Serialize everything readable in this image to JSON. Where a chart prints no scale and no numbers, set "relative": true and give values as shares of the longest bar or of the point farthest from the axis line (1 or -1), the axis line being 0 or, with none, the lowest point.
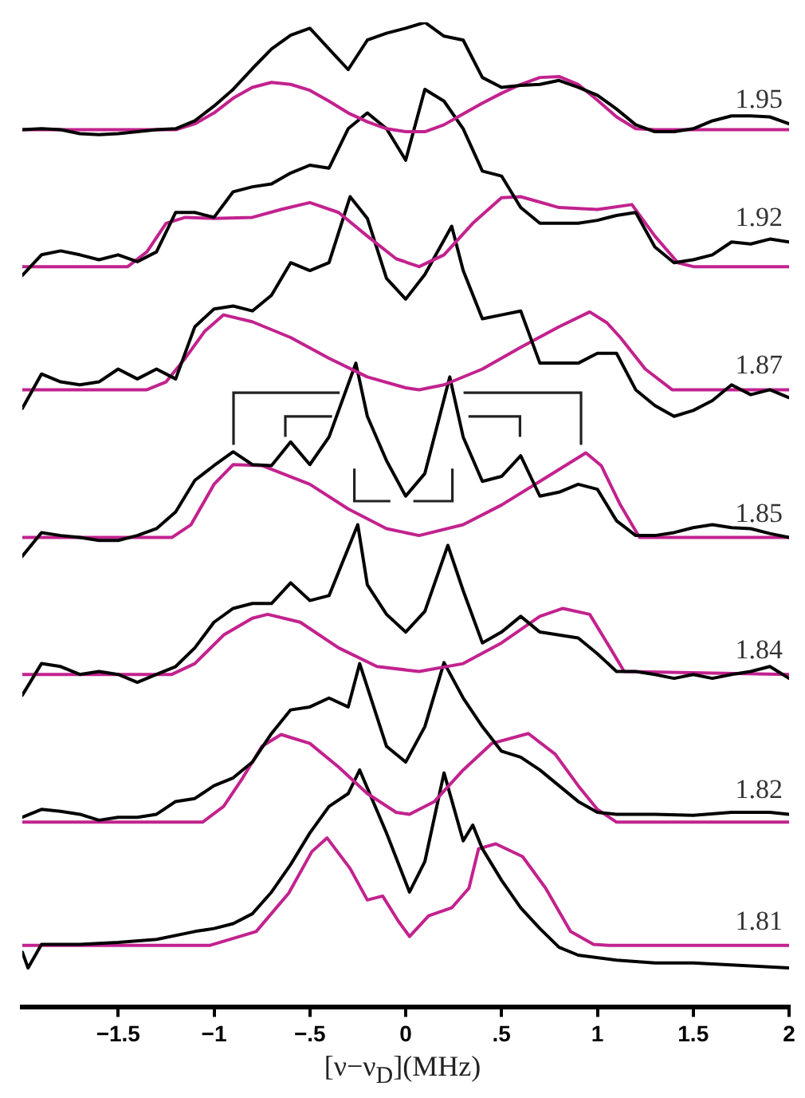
{
  "chart_data": {
    "type": "line",
    "relative": true,
    "xlabel": "[ν−ν$_{D}$](MHz)",
    "xlim": [
      -2,
      2
    ],
    "xticks": [
      {
        "value": -1.5,
        "label": "−1.5"
      },
      {
        "value": -1,
        "label": "−1"
      },
      {
        "value": -0.5,
        "label": "−.5"
      },
      {
        "value": 0,
        "label": "0"
      },
      {
        "value": 0.5,
        "label": ".5"
      },
      {
        "value": 1,
        "label": "1"
      },
      {
        "value": 1.5,
        "label": "1.5"
      },
      {
        "value": 2,
        "label": "2"
      }
    ],
    "series": [
      {
        "name": "1.95",
        "color": "#000000",
        "x": [
          -2,
          -1.9,
          -1.8,
          -1.7,
          -1.6,
          -1.5,
          -1.4,
          -1.3,
          -1.2,
          -1.1,
          -1,
          -0.9,
          -0.8,
          -0.7,
          -0.6,
          -0.5,
          -0.4,
          -0.3,
          -0.2,
          -0.1,
          0,
          0.1,
          0.2,
          0.3,
          0.4,
          0.5,
          0.6,
          0.7,
          0.8,
          0.9,
          1,
          1.1,
          1.2,
          1.3,
          1.4,
          1.5,
          1.6,
          1.7,
          1.8,
          1.9,
          2
        ],
        "values": [
          0.891,
          0.892,
          0.891,
          0.887,
          0.886,
          0.887,
          0.889,
          0.891,
          0.892,
          0.9,
          0.915,
          0.932,
          0.953,
          0.973,
          0.987,
          0.994,
          0.973,
          0.952,
          0.982,
          0.989,
          0.994,
          1,
          0.986,
          0.982,
          0.944,
          0.934,
          0.936,
          0.937,
          0.941,
          0.934,
          0.926,
          0.912,
          0.896,
          0.889,
          0.889,
          0.892,
          0.9,
          0.905,
          0.905,
          0.904,
          0.897
        ]
      },
      {
        "color": "#c2228e",
        "x": [
          -2,
          -1.2,
          -1.1,
          -1,
          -0.9,
          -0.8,
          -0.7,
          -0.6,
          -0.5,
          -0.4,
          -0.3,
          -0.2,
          -0.1,
          0,
          0.1,
          0.2,
          0.3,
          0.4,
          0.5,
          0.6,
          0.7,
          0.8,
          0.9,
          1,
          1.1,
          1.2,
          1.3,
          2
        ],
        "values": [
          0.891,
          0.891,
          0.897,
          0.908,
          0.923,
          0.934,
          0.939,
          0.937,
          0.931,
          0.92,
          0.908,
          0.899,
          0.892,
          0.889,
          0.889,
          0.896,
          0.907,
          0.918,
          0.928,
          0.937,
          0.944,
          0.945,
          0.937,
          0.921,
          0.904,
          0.892,
          0.891,
          0.891
        ]
      },
      {
        "name": "1.92",
        "color": "#000000",
        "x": [
          -2,
          -1.9,
          -1.8,
          -1.7,
          -1.6,
          -1.5,
          -1.4,
          -1.3,
          -1.2,
          -1.1,
          -1,
          -0.9,
          -0.8,
          -0.7,
          -0.6,
          -0.5,
          -0.4,
          -0.3,
          -0.2,
          -0.1,
          0,
          0.1,
          0.2,
          0.3,
          0.4,
          0.5,
          0.6,
          0.7,
          0.8,
          0.9,
          1,
          1.1,
          1.2,
          1.3,
          1.4,
          1.5,
          1.6,
          1.7,
          1.8,
          1.9,
          2
        ],
        "values": [
          0.743,
          0.764,
          0.768,
          0.764,
          0.759,
          0.764,
          0.757,
          0.767,
          0.807,
          0.807,
          0.802,
          0.828,
          0.833,
          0.836,
          0.847,
          0.855,
          0.852,
          0.892,
          0.908,
          0.892,
          0.86,
          0.932,
          0.92,
          0.892,
          0.849,
          0.844,
          0.812,
          0.796,
          0.796,
          0.796,
          0.799,
          0.804,
          0.807,
          0.772,
          0.756,
          0.759,
          0.764,
          0.777,
          0.775,
          0.78,
          0.777
        ]
      },
      {
        "color": "#c2228e",
        "x": [
          -2,
          -1.45,
          -1.35,
          -1.25,
          -1.15,
          -1,
          -0.8,
          -0.65,
          -0.5,
          -0.35,
          -0.2,
          -0.05,
          0.07,
          0.2,
          0.35,
          0.5,
          0.6,
          0.8,
          1,
          1.18,
          1.3,
          1.42,
          1.5,
          2
        ],
        "values": [
          0.752,
          0.752,
          0.767,
          0.796,
          0.802,
          0.801,
          0.802,
          0.81,
          0.817,
          0.807,
          0.783,
          0.76,
          0.752,
          0.764,
          0.796,
          0.822,
          0.823,
          0.812,
          0.81,
          0.815,
          0.783,
          0.756,
          0.752,
          0.752
        ]
      },
      {
        "name": "1.87",
        "color": "#000000",
        "x": [
          -2,
          -1.9,
          -1.8,
          -1.7,
          -1.6,
          -1.5,
          -1.4,
          -1.3,
          -1.2,
          -1.1,
          -1,
          -0.9,
          -0.8,
          -0.7,
          -0.6,
          -0.5,
          -0.4,
          -0.29,
          -0.2,
          -0.1,
          0,
          0.1,
          0.24,
          0.3,
          0.4,
          0.5,
          0.6,
          0.7,
          0.8,
          0.9,
          1,
          1.1,
          1.2,
          1.3,
          1.4,
          1.5,
          1.6,
          1.7,
          1.8,
          1.9,
          2
        ],
        "values": [
          0.608,
          0.643,
          0.635,
          0.632,
          0.635,
          0.648,
          0.638,
          0.648,
          0.638,
          0.691,
          0.709,
          0.712,
          0.707,
          0.723,
          0.756,
          0.748,
          0.756,
          0.823,
          0.801,
          0.74,
          0.719,
          0.744,
          0.793,
          0.748,
          0.699,
          0.703,
          0.707,
          0.654,
          0.654,
          0.654,
          0.664,
          0.664,
          0.627,
          0.611,
          0.6,
          0.606,
          0.616,
          0.632,
          0.622,
          0.627,
          0.619
        ]
      },
      {
        "color": "#c2228e",
        "x": [
          -2,
          -1.35,
          -1.25,
          -1.15,
          -1.05,
          -0.95,
          -0.8,
          -0.6,
          -0.4,
          -0.2,
          0,
          0.07,
          0.2,
          0.4,
          0.6,
          0.8,
          0.96,
          1.05,
          1.12,
          1.25,
          1.39,
          2
        ],
        "values": [
          0.627,
          0.627,
          0.635,
          0.659,
          0.686,
          0.703,
          0.696,
          0.68,
          0.659,
          0.64,
          0.629,
          0.627,
          0.632,
          0.648,
          0.67,
          0.691,
          0.706,
          0.695,
          0.68,
          0.648,
          0.627,
          0.627
        ]
      },
      {
        "name": "1.85",
        "color": "#000000",
        "x": [
          -2,
          -1.9,
          -1.8,
          -1.7,
          -1.6,
          -1.5,
          -1.4,
          -1.3,
          -1.2,
          -1.1,
          -1,
          -0.9,
          -0.8,
          -0.7,
          -0.6,
          -0.5,
          -0.4,
          -0.26,
          -0.2,
          -0.1,
          0,
          0.1,
          0.23,
          0.3,
          0.4,
          0.5,
          0.6,
          0.7,
          0.8,
          0.9,
          1,
          1.1,
          1.2,
          1.3,
          1.4,
          1.5,
          1.6,
          1.7,
          1.8,
          1.9,
          2
        ],
        "values": [
          0.458,
          0.482,
          0.479,
          0.477,
          0.474,
          0.474,
          0.479,
          0.486,
          0.503,
          0.535,
          0.55,
          0.564,
          0.551,
          0.55,
          0.574,
          0.551,
          0.579,
          0.654,
          0.6,
          0.555,
          0.519,
          0.542,
          0.64,
          0.579,
          0.534,
          0.539,
          0.56,
          0.519,
          0.523,
          0.531,
          0.526,
          0.494,
          0.479,
          0.479,
          0.482,
          0.487,
          0.49,
          0.487,
          0.486,
          0.481,
          0.477
        ]
      },
      {
        "color": "#c2228e",
        "x": [
          -2,
          -1.22,
          -1.12,
          -1,
          -0.9,
          -0.75,
          -0.5,
          -0.3,
          -0.1,
          0.07,
          0.3,
          0.5,
          0.7,
          0.94,
          1.02,
          1.12,
          1.22,
          2
        ],
        "values": [
          0.477,
          0.477,
          0.49,
          0.531,
          0.551,
          0.55,
          0.531,
          0.506,
          0.486,
          0.479,
          0.49,
          0.51,
          0.534,
          0.563,
          0.55,
          0.51,
          0.477,
          0.477
        ]
      },
      {
        "name": "1.84",
        "color": "#000000",
        "x": [
          -2,
          -1.9,
          -1.8,
          -1.7,
          -1.6,
          -1.5,
          -1.4,
          -1.3,
          -1.2,
          -1.1,
          -1,
          -0.9,
          -0.8,
          -0.7,
          -0.6,
          -0.5,
          -0.4,
          -0.25,
          -0.2,
          -0.1,
          0,
          0.1,
          0.22,
          0.3,
          0.4,
          0.5,
          0.6,
          0.7,
          0.8,
          0.9,
          1,
          1.1,
          1.2,
          1.3,
          1.4,
          1.5,
          1.6,
          1.7,
          1.8,
          1.9,
          2
        ],
        "values": [
          0.317,
          0.349,
          0.346,
          0.338,
          0.341,
          0.338,
          0.33,
          0.338,
          0.346,
          0.365,
          0.391,
          0.405,
          0.41,
          0.41,
          0.431,
          0.413,
          0.418,
          0.49,
          0.429,
          0.399,
          0.381,
          0.402,
          0.469,
          0.423,
          0.37,
          0.381,
          0.397,
          0.381,
          0.378,
          0.375,
          0.359,
          0.341,
          0.341,
          0.338,
          0.334,
          0.338,
          0.334,
          0.338,
          0.341,
          0.346,
          0.334
        ]
      },
      {
        "color": "#c2228e",
        "x": [
          -2,
          -1.22,
          -1.1,
          -0.95,
          -0.8,
          -0.72,
          -0.55,
          -0.35,
          -0.15,
          0.07,
          0.3,
          0.5,
          0.7,
          0.82,
          0.96,
          1.06,
          1.14,
          2
        ],
        "values": [
          0.338,
          0.338,
          0.349,
          0.378,
          0.395,
          0.399,
          0.391,
          0.365,
          0.346,
          0.341,
          0.349,
          0.37,
          0.397,
          0.405,
          0.399,
          0.367,
          0.341,
          0.338
        ]
      },
      {
        "name": "1.82",
        "color": "#000000",
        "x": [
          -2,
          -1.9,
          -1.8,
          -1.7,
          -1.6,
          -1.5,
          -1.4,
          -1.3,
          -1.2,
          -1.1,
          -1,
          -0.9,
          -0.8,
          -0.7,
          -0.6,
          -0.5,
          -0.4,
          -0.3,
          -0.24,
          -0.1,
          0,
          0.1,
          0.2,
          0.3,
          0.4,
          0.5,
          0.6,
          0.7,
          0.8,
          0.9,
          1,
          1.1,
          1.3,
          1.5,
          1.7,
          1.9,
          2
        ],
        "values": [
          0.193,
          0.201,
          0.199,
          0.196,
          0.19,
          0.193,
          0.193,
          0.196,
          0.209,
          0.212,
          0.225,
          0.233,
          0.249,
          0.278,
          0.302,
          0.305,
          0.314,
          0.305,
          0.349,
          0.265,
          0.249,
          0.285,
          0.35,
          0.314,
          0.285,
          0.26,
          0.254,
          0.241,
          0.225,
          0.209,
          0.198,
          0.196,
          0.196,
          0.195,
          0.198,
          0.198,
          0.196
        ]
      },
      {
        "color": "#c2228e",
        "x": [
          -2,
          -1.06,
          -0.95,
          -0.85,
          -0.75,
          -0.65,
          -0.5,
          -0.35,
          -0.2,
          -0.05,
          0.02,
          0.15,
          0.3,
          0.45,
          0.64,
          0.78,
          0.9,
          1,
          1.1,
          2
        ],
        "values": [
          0.188,
          0.188,
          0.204,
          0.233,
          0.265,
          0.277,
          0.268,
          0.244,
          0.217,
          0.198,
          0.196,
          0.209,
          0.241,
          0.268,
          0.278,
          0.257,
          0.225,
          0.201,
          0.188,
          0.188
        ]
      },
      {
        "name": "1.81",
        "color": "#000000",
        "x": [
          -2,
          -1.97,
          -1.9,
          -1.7,
          -1.5,
          -1.3,
          -1.1,
          -1,
          -0.9,
          -0.8,
          -0.7,
          -0.6,
          -0.5,
          -0.4,
          -0.3,
          -0.24,
          -0.1,
          0.02,
          0.1,
          0.2,
          0.3,
          0.35,
          0.4,
          0.5,
          0.6,
          0.7,
          0.8,
          0.9,
          1.1,
          1.3,
          1.5,
          1.7,
          2
        ],
        "values": [
          0.056,
          0.04,
          0.064,
          0.064,
          0.066,
          0.069,
          0.077,
          0.08,
          0.085,
          0.095,
          0.117,
          0.145,
          0.177,
          0.204,
          0.217,
          0.241,
          0.177,
          0.117,
          0.148,
          0.238,
          0.169,
          0.185,
          0.161,
          0.129,
          0.101,
          0.08,
          0.061,
          0.053,
          0.048,
          0.045,
          0.045,
          0.043,
          0.04
        ]
      },
      {
        "color": "#c2228e",
        "x": [
          -2,
          -1.02,
          -0.78,
          -0.61,
          -0.49,
          -0.41,
          -0.29,
          -0.2,
          -0.12,
          -0.04,
          0.02,
          0.12,
          0.24,
          0.33,
          0.38,
          0.47,
          0.61,
          0.73,
          0.86,
          0.98,
          1.06,
          2
        ],
        "values": [
          0.063,
          0.063,
          0.077,
          0.116,
          0.158,
          0.172,
          0.141,
          0.109,
          0.113,
          0.088,
          0.072,
          0.093,
          0.101,
          0.121,
          0.161,
          0.166,
          0.153,
          0.121,
          0.077,
          0.064,
          0.063,
          0.063
        ]
      }
    ]
  }
}
